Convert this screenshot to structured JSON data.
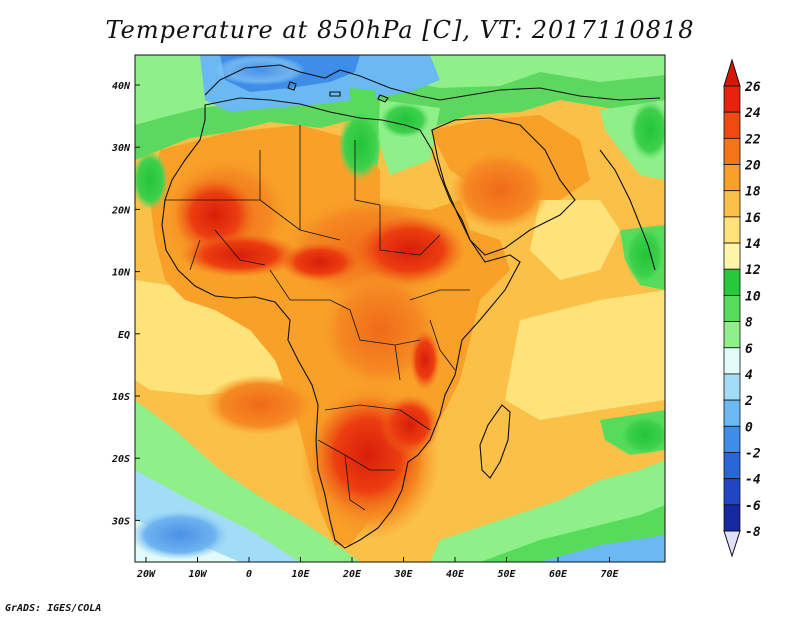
{
  "title": "Temperature at 850hPa [C], VT: 2017110818",
  "credit": "GrADS: IGES/COLA",
  "map": {
    "lat_labels": [
      "40N",
      "30N",
      "20N",
      "10N",
      "EQ",
      "10S",
      "20S",
      "30S"
    ],
    "lon_labels": [
      "20W",
      "10W",
      "0",
      "10E",
      "20E",
      "30E",
      "40E",
      "50E",
      "60E",
      "70E"
    ]
  },
  "colorbar": {
    "labels": [
      "26",
      "24",
      "22",
      "20",
      "18",
      "16",
      "14",
      "12",
      "10",
      "8",
      "6",
      "4",
      "2",
      "0",
      "-2",
      "-4",
      "-6",
      "-8"
    ],
    "colors": [
      "#e8220c",
      "#f04a10",
      "#f57418",
      "#f8a028",
      "#fbc048",
      "#fde37a",
      "#fff5a8",
      "#28c83c",
      "#56dc5a",
      "#8ff08a",
      "#e2faf8",
      "#a2dcf6",
      "#6ab9f2",
      "#3e8de8",
      "#2a66da",
      "#1f45c2",
      "#1429a0",
      "#0a1470"
    ],
    "top_color": "#d8160a",
    "bottom_color": "#e0e0fa"
  }
}
